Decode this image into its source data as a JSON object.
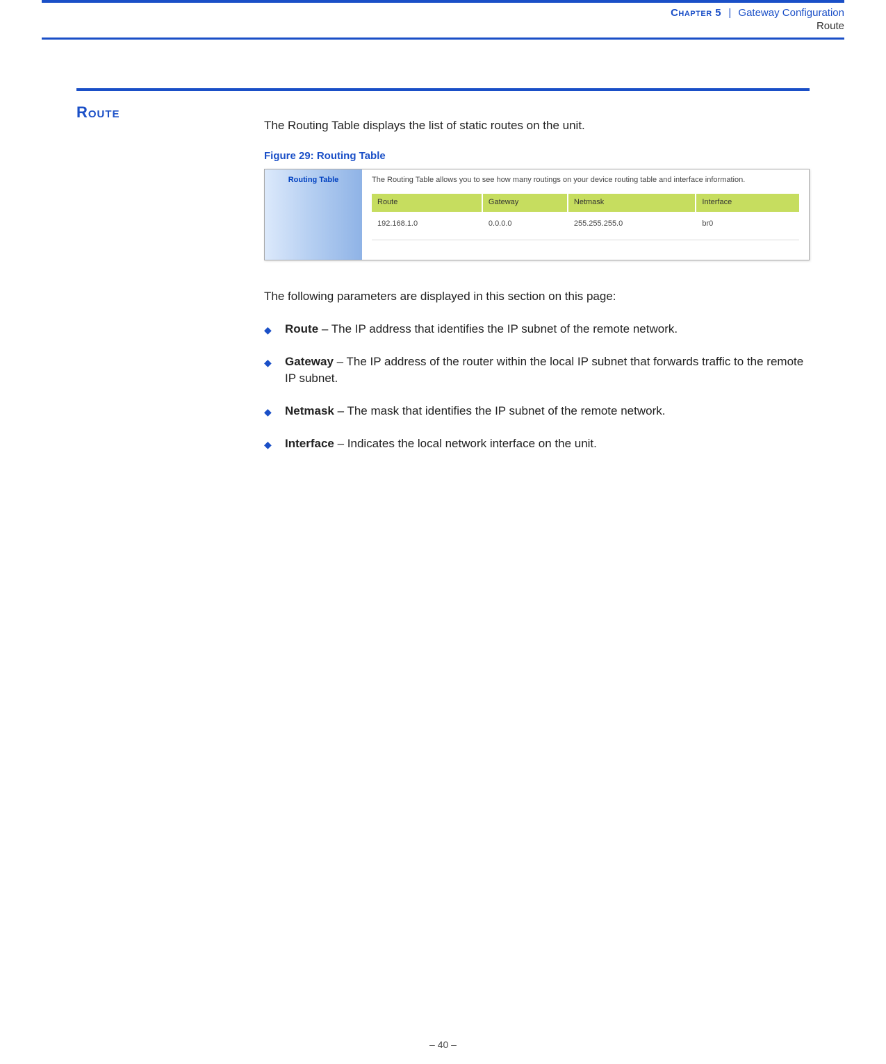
{
  "header": {
    "chapter_label": "Chapter 5",
    "separator": "|",
    "chapter_title": "Gateway Configuration",
    "sub": "Route"
  },
  "section": {
    "heading": "Route",
    "intro": "The Routing Table displays the list of static routes on the unit.",
    "figure_caption": "Figure 29:  Routing Table"
  },
  "screenshot": {
    "sidebar_title": "Routing Table",
    "description": "The Routing Table allows you to see how many routings on your device routing table and interface information.",
    "columns": [
      "Route",
      "Gateway",
      "Netmask",
      "Interface"
    ],
    "row": [
      "192.168.1.0",
      "0.0.0.0",
      "255.255.255.0",
      "br0"
    ]
  },
  "params": {
    "intro": "The following parameters are displayed in this section on this page:",
    "items": [
      {
        "term": "Route",
        "desc": " – The IP address that identifies the IP subnet of the remote network."
      },
      {
        "term": "Gateway",
        "desc": " – The IP address of the router within the local IP subnet that forwards traffic to the remote IP subnet."
      },
      {
        "term": "Netmask",
        "desc": " – The mask that identifies the IP subnet of the remote network."
      },
      {
        "term": "Interface",
        "desc": " – Indicates the local network interface on the unit."
      }
    ]
  },
  "footer": {
    "page": "–  40  –"
  }
}
